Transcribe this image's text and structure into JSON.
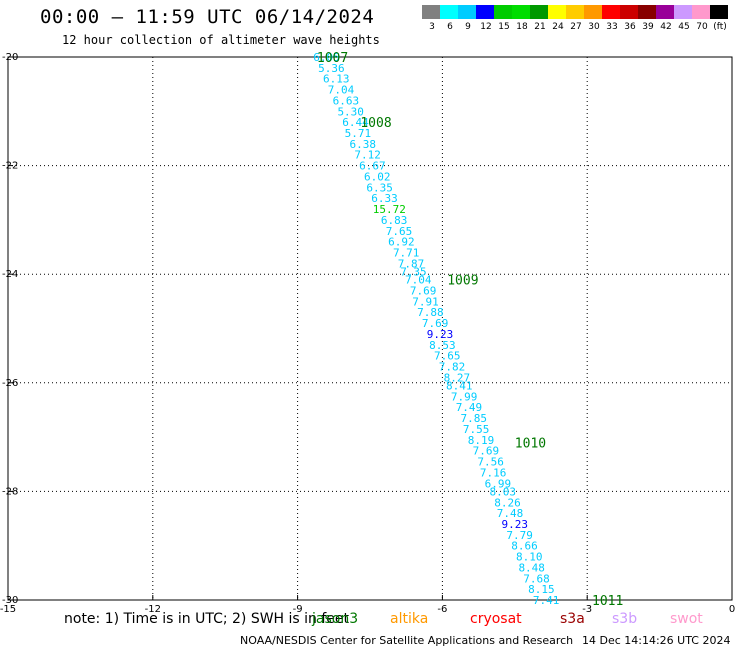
{
  "title": "00:00 – 11:59 UTC 06/14/2024",
  "subtitle": "12 hour collection of altimeter wave heights",
  "colorbar": {
    "labels": [
      "3",
      "6",
      "9",
      "12",
      "15",
      "18",
      "21",
      "24",
      "27",
      "30",
      "33",
      "36",
      "39",
      "42",
      "45",
      "70",
      "(ft)"
    ],
    "colors": [
      "#808080",
      "#00ffff",
      "#00ccff",
      "#0000ff",
      "#00cc00",
      "#00dd00",
      "#009900",
      "#ffff00",
      "#ffcc00",
      "#ff9900",
      "#ff0000",
      "#cc0000",
      "#880000",
      "#990099",
      "#cc99ff",
      "#ff99cc",
      "#000000"
    ]
  },
  "axes": {
    "x_ticks": [
      "-15",
      "-12",
      "-9",
      "-6",
      "-3",
      "0"
    ],
    "y_ticks": [
      "-20",
      "-22",
      "-24",
      "-26",
      "-28",
      "-30"
    ]
  },
  "pressure_labels": [
    {
      "text": "1007",
      "lon": -8.6,
      "lat": -20.0
    },
    {
      "text": "1008",
      "lon": -7.7,
      "lat": -21.2
    },
    {
      "text": "1009",
      "lon": -5.9,
      "lat": -24.1
    },
    {
      "text": "1010",
      "lon": -4.5,
      "lat": -27.1
    },
    {
      "text": "1011",
      "lon": -2.9,
      "lat": -30.0
    }
  ],
  "wave_heights": [
    {
      "v": "6.05",
      "lon": -8.4,
      "lat": -20.0,
      "c": "#00ccff"
    },
    {
      "v": "5.36",
      "lon": -8.3,
      "lat": -20.2,
      "c": "#00ccff"
    },
    {
      "v": "6.13",
      "lon": -8.2,
      "lat": -20.4,
      "c": "#00ccff"
    },
    {
      "v": "7.04",
      "lon": -8.1,
      "lat": -20.6,
      "c": "#00ccff"
    },
    {
      "v": "6.63",
      "lon": -8.0,
      "lat": -20.8,
      "c": "#00ccff"
    },
    {
      "v": "5.30",
      "lon": -7.9,
      "lat": -21.0,
      "c": "#00ccff"
    },
    {
      "v": "6.44",
      "lon": -7.8,
      "lat": -21.2,
      "c": "#00ccff"
    },
    {
      "v": "5.71",
      "lon": -7.75,
      "lat": -21.4,
      "c": "#00ccff"
    },
    {
      "v": "6.38",
      "lon": -7.65,
      "lat": -21.6,
      "c": "#00ccff"
    },
    {
      "v": "7.12",
      "lon": -7.55,
      "lat": -21.8,
      "c": "#00ccff"
    },
    {
      "v": "6.67",
      "lon": -7.45,
      "lat": -22.0,
      "c": "#00ccff"
    },
    {
      "v": "6.02",
      "lon": -7.35,
      "lat": -22.2,
      "c": "#00ccff"
    },
    {
      "v": "6.35",
      "lon": -7.3,
      "lat": -22.4,
      "c": "#00ccff"
    },
    {
      "v": "6.33",
      "lon": -7.2,
      "lat": -22.6,
      "c": "#00ccff"
    },
    {
      "v": "15.72",
      "lon": -7.1,
      "lat": -22.8,
      "c": "#00cc00"
    },
    {
      "v": "6.83",
      "lon": -7.0,
      "lat": -23.0,
      "c": "#00ccff"
    },
    {
      "v": "7.65",
      "lon": -6.9,
      "lat": -23.2,
      "c": "#00ccff"
    },
    {
      "v": "6.92",
      "lon": -6.85,
      "lat": -23.4,
      "c": "#00ccff"
    },
    {
      "v": "7.71",
      "lon": -6.75,
      "lat": -23.6,
      "c": "#00ccff"
    },
    {
      "v": "7.87",
      "lon": -6.65,
      "lat": -23.8,
      "c": "#00ccff"
    },
    {
      "v": "7.35",
      "lon": -6.6,
      "lat": -23.95,
      "c": "#00ccff"
    },
    {
      "v": "7.04",
      "lon": -6.5,
      "lat": -24.1,
      "c": "#00ccff"
    },
    {
      "v": "7.69",
      "lon": -6.4,
      "lat": -24.3,
      "c": "#00ccff"
    },
    {
      "v": "7.91",
      "lon": -6.35,
      "lat": -24.5,
      "c": "#00ccff"
    },
    {
      "v": "7.88",
      "lon": -6.25,
      "lat": -24.7,
      "c": "#00ccff"
    },
    {
      "v": "7.69",
      "lon": -6.15,
      "lat": -24.9,
      "c": "#00ccff"
    },
    {
      "v": "9.23",
      "lon": -6.05,
      "lat": -25.1,
      "c": "#0000ff"
    },
    {
      "v": "8.53",
      "lon": -6.0,
      "lat": -25.3,
      "c": "#00ccff"
    },
    {
      "v": "7.65",
      "lon": -5.9,
      "lat": -25.5,
      "c": "#00ccff"
    },
    {
      "v": "7.82",
      "lon": -5.8,
      "lat": -25.7,
      "c": "#00ccff"
    },
    {
      "v": "8.27",
      "lon": -5.7,
      "lat": -25.9,
      "c": "#00ccff"
    },
    {
      "v": "8.41",
      "lon": -5.65,
      "lat": -26.05,
      "c": "#00ccff"
    },
    {
      "v": "7.99",
      "lon": -5.55,
      "lat": -26.25,
      "c": "#00ccff"
    },
    {
      "v": "7.49",
      "lon": -5.45,
      "lat": -26.45,
      "c": "#00ccff"
    },
    {
      "v": "7.85",
      "lon": -5.35,
      "lat": -26.65,
      "c": "#00ccff"
    },
    {
      "v": "7.55",
      "lon": -5.3,
      "lat": -26.85,
      "c": "#00ccff"
    },
    {
      "v": "8.19",
      "lon": -5.2,
      "lat": -27.05,
      "c": "#00ccff"
    },
    {
      "v": "7.69",
      "lon": -5.1,
      "lat": -27.25,
      "c": "#00ccff"
    },
    {
      "v": "7.56",
      "lon": -5.0,
      "lat": -27.45,
      "c": "#00ccff"
    },
    {
      "v": "7.16",
      "lon": -4.95,
      "lat": -27.65,
      "c": "#00ccff"
    },
    {
      "v": "6.99",
      "lon": -4.85,
      "lat": -27.85,
      "c": "#00ccff"
    },
    {
      "v": "8.03",
      "lon": -4.75,
      "lat": -28.0,
      "c": "#00ccff"
    },
    {
      "v": "8.26",
      "lon": -4.65,
      "lat": -28.2,
      "c": "#00ccff"
    },
    {
      "v": "7.48",
      "lon": -4.6,
      "lat": -28.4,
      "c": "#00ccff"
    },
    {
      "v": "9.23",
      "lon": -4.5,
      "lat": -28.6,
      "c": "#0000ff"
    },
    {
      "v": "7.79",
      "lon": -4.4,
      "lat": -28.8,
      "c": "#00ccff"
    },
    {
      "v": "8.66",
      "lon": -4.3,
      "lat": -29.0,
      "c": "#00ccff"
    },
    {
      "v": "8.10",
      "lon": -4.2,
      "lat": -29.2,
      "c": "#00ccff"
    },
    {
      "v": "8.48",
      "lon": -4.15,
      "lat": -29.4,
      "c": "#00ccff"
    },
    {
      "v": "7.68",
      "lon": -4.05,
      "lat": -29.6,
      "c": "#00ccff"
    },
    {
      "v": "8.15",
      "lon": -3.95,
      "lat": -29.8,
      "c": "#00ccff"
    },
    {
      "v": "7.41",
      "lon": -3.85,
      "lat": -30.0,
      "c": "#00ccff"
    }
  ],
  "note": "note:  1) Time is in UTC;  2) SWH is in feet",
  "legend": [
    {
      "label": "jason3",
      "color": "#007700"
    },
    {
      "label": "altika",
      "color": "#ff9900"
    },
    {
      "label": "cryosat",
      "color": "#ff0000"
    },
    {
      "label": "s3a",
      "color": "#990000"
    },
    {
      "label": "s3b",
      "color": "#cc99ff"
    },
    {
      "label": "swot",
      "color": "#ff99cc"
    }
  ],
  "footer_left": "NOAA/NESDIS Center for Satellite Applications and Research",
  "footer_right": "14 Dec 14:14:26 UTC 2024"
}
